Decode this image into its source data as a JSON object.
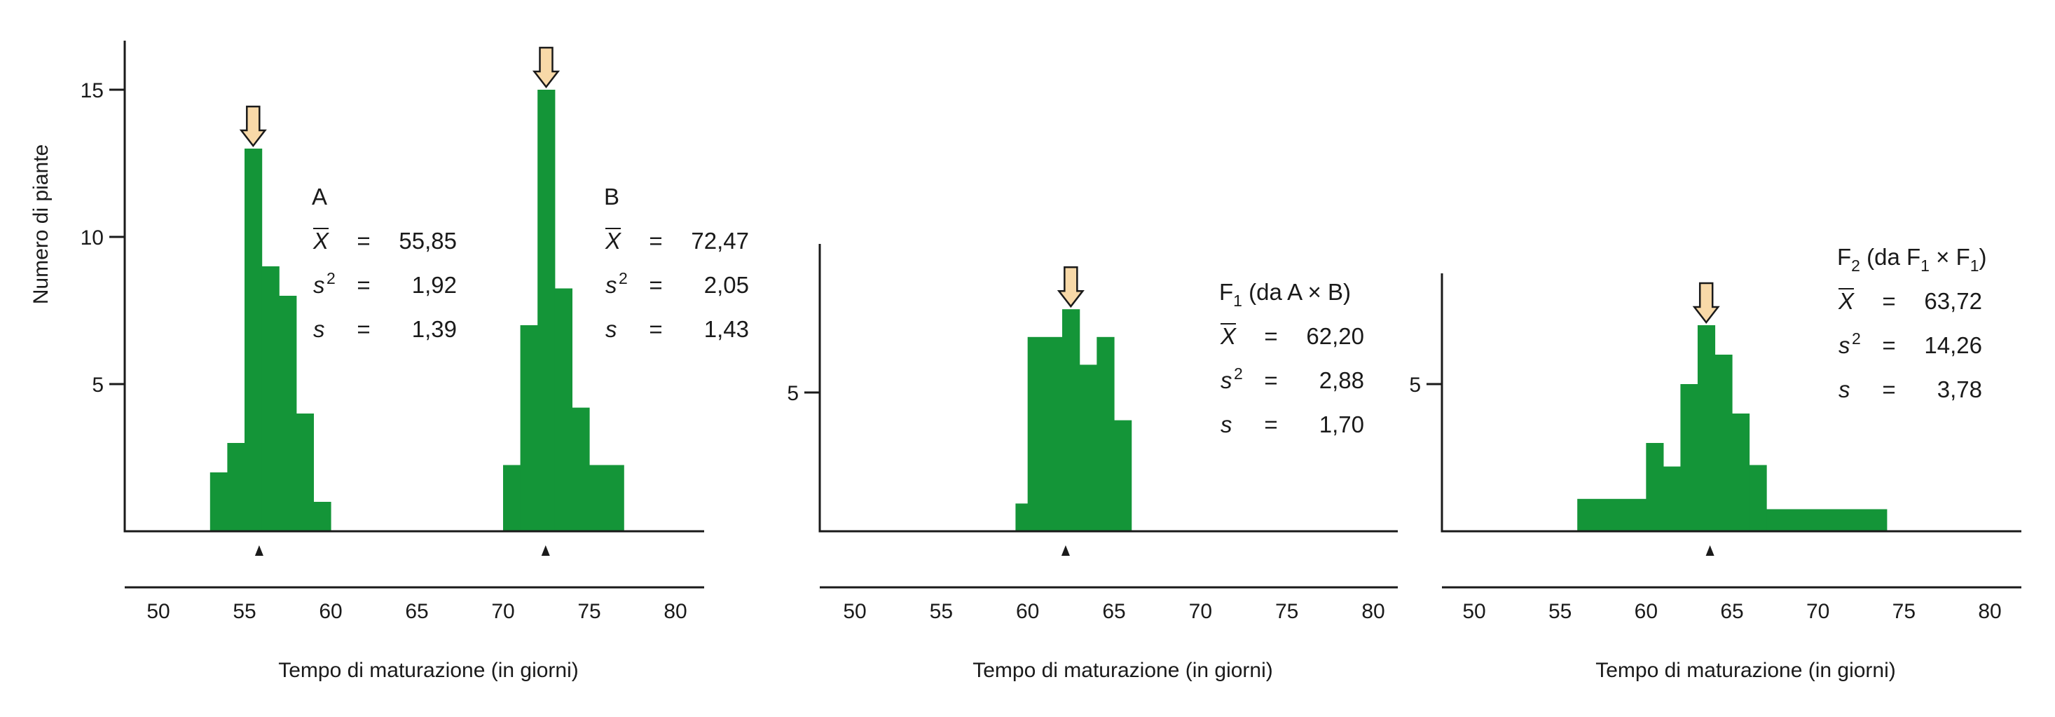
{
  "chart_data": [
    {
      "type": "bar",
      "panel": "left",
      "ylabel": "Numero di piante",
      "xlabel": "Tempo di maturazione (in giorni)",
      "xlim": [
        48,
        82
      ],
      "ylim": [
        0,
        16.5
      ],
      "x_ticks": [
        50,
        55,
        60,
        65,
        70,
        75,
        80
      ],
      "y_ticks": [
        5,
        10,
        15
      ],
      "series": [
        {
          "name": "A",
          "bins": [
            {
              "x0": 53,
              "x1": 54,
              "value": 2
            },
            {
              "x0": 54,
              "x1": 55,
              "value": 3
            },
            {
              "x0": 55,
              "x1": 56,
              "value": 13
            },
            {
              "x0": 56,
              "x1": 57,
              "value": 9
            },
            {
              "x0": 57,
              "x1": 58,
              "value": 8
            },
            {
              "x0": 58,
              "x1": 59,
              "value": 4
            },
            {
              "x0": 59,
              "x1": 60,
              "value": 1
            }
          ],
          "mode_arrow_x": 55.5,
          "mean_marker_x": 55.85
        },
        {
          "name": "B",
          "bins": [
            {
              "x0": 70,
              "x1": 71,
              "value": 2.25
            },
            {
              "x0": 71,
              "x1": 72,
              "value": 7
            },
            {
              "x0": 72,
              "x1": 73,
              "value": 15
            },
            {
              "x0": 73,
              "x1": 74,
              "value": 8.25
            },
            {
              "x0": 74,
              "x1": 75,
              "value": 4.2
            },
            {
              "x0": 75,
              "x1": 77,
              "value": 2.25
            }
          ],
          "mode_arrow_x": 72.5,
          "mean_marker_x": 72.47
        }
      ],
      "annotations": [
        {
          "title": "A",
          "rows": [
            {
              "sym": "X",
              "eq": "=",
              "val": "55,85"
            },
            {
              "sym": "s",
              "sup": "2",
              "eq": "=",
              "val": "1,92"
            },
            {
              "sym": "s",
              "eq": "=",
              "val": "1,39"
            }
          ]
        },
        {
          "title": "B",
          "rows": [
            {
              "sym": "X",
              "eq": "=",
              "val": "72,47"
            },
            {
              "sym": "s",
              "sup": "2",
              "eq": "=",
              "val": "2,05"
            },
            {
              "sym": "s",
              "eq": "=",
              "val": "1,43"
            }
          ]
        }
      ]
    },
    {
      "type": "bar",
      "panel": "middle",
      "xlabel": "Tempo di maturazione (in giorni)",
      "xlim": [
        48,
        82
      ],
      "ylim": [
        0,
        10.5
      ],
      "x_ticks": [
        50,
        55,
        60,
        65,
        70,
        75,
        80
      ],
      "y_ticks": [
        5
      ],
      "series": [
        {
          "name": "F1",
          "bins": [
            {
              "x0": 59.3,
              "x1": 60,
              "value": 1
            },
            {
              "x0": 60,
              "x1": 62,
              "value": 7
            },
            {
              "x0": 62,
              "x1": 63,
              "value": 8
            },
            {
              "x0": 63,
              "x1": 64,
              "value": 6
            },
            {
              "x0": 64,
              "x1": 65,
              "value": 7
            },
            {
              "x0": 65,
              "x1": 66,
              "value": 4
            }
          ],
          "mode_arrow_x": 62.5,
          "mean_marker_x": 62.2
        }
      ],
      "annotations": [
        {
          "title": "F",
          "title_sub": "1",
          "title_rest": " (da A × B)",
          "rows": [
            {
              "sym": "X",
              "eq": "=",
              "val": "62,20"
            },
            {
              "sym": "s",
              "sup": "2",
              "eq": "=",
              "val": "2,88"
            },
            {
              "sym": "s",
              "eq": "=",
              "val": "1,70"
            }
          ]
        }
      ]
    },
    {
      "type": "bar",
      "panel": "right",
      "xlabel": "Tempo di maturazione (in giorni)",
      "xlim": [
        48,
        82
      ],
      "ylim": [
        0,
        9.3
      ],
      "x_ticks": [
        50,
        55,
        60,
        65,
        70,
        75,
        80
      ],
      "y_ticks": [
        5
      ],
      "series": [
        {
          "name": "F2",
          "bins": [
            {
              "x0": 56,
              "x1": 60,
              "value": 1.1
            },
            {
              "x0": 60,
              "x1": 61,
              "value": 3
            },
            {
              "x0": 61,
              "x1": 62,
              "value": 2.2
            },
            {
              "x0": 62,
              "x1": 63,
              "value": 5
            },
            {
              "x0": 63,
              "x1": 64,
              "value": 7
            },
            {
              "x0": 64,
              "x1": 65,
              "value": 6
            },
            {
              "x0": 65,
              "x1": 66,
              "value": 4
            },
            {
              "x0": 66,
              "x1": 67,
              "value": 2.25
            },
            {
              "x0": 67,
              "x1": 74,
              "value": 0.75
            }
          ],
          "mode_arrow_x": 63.5,
          "mean_marker_x": 63.72
        }
      ],
      "annotations": [
        {
          "title": "F",
          "title_sub": "2",
          "title_rest": " (da F",
          "title_sub2": "1",
          "title_rest2": " × F",
          "title_sub3": "1",
          "title_rest3": ")",
          "rows": [
            {
              "sym": "X",
              "eq": "=",
              "val": "63,72"
            },
            {
              "sym": "s",
              "sup": "2",
              "eq": "=",
              "val": "14,26"
            },
            {
              "sym": "s",
              "eq": "=",
              "val": "3,78"
            }
          ]
        }
      ]
    }
  ]
}
